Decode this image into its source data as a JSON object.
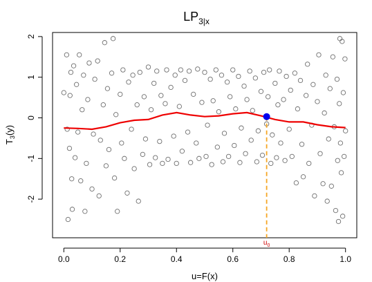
{
  "chart_data": {
    "type": "scatter",
    "title": {
      "base": "LP",
      "subscript": "3|x"
    },
    "xlabel": "u=F(x)",
    "ylabel": {
      "base": "T",
      "subscript": "3",
      "suffix": "(y)"
    },
    "xlim": [
      -0.04,
      1.04
    ],
    "ylim": [
      -2.95,
      2.1
    ],
    "x_ticks": [
      0.0,
      0.2,
      0.4,
      0.6,
      0.8,
      1.0
    ],
    "x_tick_labels": [
      "0.0",
      "0.2",
      "0.4",
      "0.6",
      "0.8",
      "1.0"
    ],
    "y_ticks": [
      -2,
      -1,
      0,
      1,
      2
    ],
    "y_tick_labels": [
      "-2",
      "-1",
      "0",
      "1",
      "2"
    ],
    "grid": false,
    "colors": {
      "points": "#6e6e6e",
      "curve": "#ee0000",
      "highlight": "#0000ee",
      "guide": "#f5a623",
      "marker_label": "#cc0000"
    },
    "series": [
      {
        "type": "scatter",
        "points": [
          [
            0.0,
            0.62
          ],
          [
            0.01,
            1.55
          ],
          [
            0.012,
            -0.28
          ],
          [
            0.015,
            -2.5
          ],
          [
            0.02,
            -0.75
          ],
          [
            0.022,
            0.55
          ],
          [
            0.025,
            1.12
          ],
          [
            0.028,
            -1.5
          ],
          [
            0.03,
            -2.25
          ],
          [
            0.035,
            1.28
          ],
          [
            0.04,
            -0.98
          ],
          [
            0.045,
            0.82
          ],
          [
            0.05,
            -0.35
          ],
          [
            0.055,
            1.55
          ],
          [
            0.06,
            -1.55
          ],
          [
            0.065,
            0.2
          ],
          [
            0.07,
            1.05
          ],
          [
            0.075,
            -2.3
          ],
          [
            0.08,
            -1.12
          ],
          [
            0.085,
            0.45
          ],
          [
            0.09,
            1.35
          ],
          [
            0.1,
            -1.75
          ],
          [
            0.105,
            -0.4
          ],
          [
            0.11,
            0.95
          ],
          [
            0.12,
            1.4
          ],
          [
            0.125,
            -1.92
          ],
          [
            0.13,
            -0.55
          ],
          [
            0.14,
            0.32
          ],
          [
            0.145,
            1.85
          ],
          [
            0.15,
            -1.18
          ],
          [
            0.155,
            0.72
          ],
          [
            0.16,
            -0.78
          ],
          [
            0.17,
            1.1
          ],
          [
            0.175,
            1.95
          ],
          [
            0.18,
            -1.48
          ],
          [
            0.185,
            0.08
          ],
          [
            0.19,
            -2.3
          ],
          [
            0.2,
            0.58
          ],
          [
            0.205,
            -0.62
          ],
          [
            0.21,
            1.18
          ],
          [
            0.215,
            -1.0
          ],
          [
            0.225,
            -1.85
          ],
          [
            0.23,
            0.88
          ],
          [
            0.24,
            -0.28
          ],
          [
            0.245,
            1.05
          ],
          [
            0.25,
            -1.25
          ],
          [
            0.26,
            0.32
          ],
          [
            0.265,
            -2.05
          ],
          [
            0.27,
            1.12
          ],
          [
            0.28,
            -0.9
          ],
          [
            0.285,
            0.52
          ],
          [
            0.29,
            -0.52
          ],
          [
            0.3,
            1.25
          ],
          [
            0.305,
            -1.15
          ],
          [
            0.31,
            0.2
          ],
          [
            0.32,
            0.85
          ],
          [
            0.325,
            -0.98
          ],
          [
            0.33,
            1.15
          ],
          [
            0.34,
            -0.58
          ],
          [
            0.345,
            0.55
          ],
          [
            0.35,
            -1.12
          ],
          [
            0.36,
            0.35
          ],
          [
            0.365,
            1.18
          ],
          [
            0.37,
            -1.02
          ],
          [
            0.38,
            0.75
          ],
          [
            0.39,
            -0.45
          ],
          [
            0.395,
            1.05
          ],
          [
            0.4,
            -1.12
          ],
          [
            0.41,
            0.28
          ],
          [
            0.415,
            1.18
          ],
          [
            0.42,
            -0.82
          ],
          [
            0.43,
            0.92
          ],
          [
            0.44,
            -0.35
          ],
          [
            0.445,
            1.15
          ],
          [
            0.45,
            -1.1
          ],
          [
            0.46,
            0.58
          ],
          [
            0.47,
            -0.62
          ],
          [
            0.475,
            1.2
          ],
          [
            0.48,
            -1.0
          ],
          [
            0.49,
            0.38
          ],
          [
            0.5,
            1.12
          ],
          [
            0.505,
            -0.95
          ],
          [
            0.51,
            -0.18
          ],
          [
            0.52,
            0.95
          ],
          [
            0.525,
            -1.15
          ],
          [
            0.53,
            0.42
          ],
          [
            0.54,
            1.18
          ],
          [
            0.545,
            -0.72
          ],
          [
            0.55,
            0.15
          ],
          [
            0.56,
            1.05
          ],
          [
            0.565,
            -1.08
          ],
          [
            0.57,
            -0.38
          ],
          [
            0.58,
            0.88
          ],
          [
            0.585,
            -0.95
          ],
          [
            0.59,
            0.52
          ],
          [
            0.6,
            1.18
          ],
          [
            0.605,
            -0.68
          ],
          [
            0.61,
            0.22
          ],
          [
            0.62,
            1.02
          ],
          [
            0.625,
            -1.1
          ],
          [
            0.63,
            -0.25
          ],
          [
            0.64,
            0.78
          ],
          [
            0.645,
            -0.88
          ],
          [
            0.65,
            0.45
          ],
          [
            0.66,
            1.15
          ],
          [
            0.665,
            -0.55
          ],
          [
            0.67,
            0.18
          ],
          [
            0.68,
            0.98
          ],
          [
            0.685,
            -1.08
          ],
          [
            0.69,
            -0.32
          ],
          [
            0.7,
            0.65
          ],
          [
            0.705,
            -0.92
          ],
          [
            0.71,
            1.12
          ],
          [
            0.72,
            -0.15
          ],
          [
            0.725,
            0.52
          ],
          [
            0.73,
            1.18
          ],
          [
            0.735,
            -1.12
          ],
          [
            0.74,
            -0.42
          ],
          [
            0.75,
            0.85
          ],
          [
            0.755,
            -0.98
          ],
          [
            0.76,
            0.32
          ],
          [
            0.765,
            1.15
          ],
          [
            0.77,
            -0.62
          ],
          [
            0.78,
            0.45
          ],
          [
            0.785,
            -1.05
          ],
          [
            0.79,
            1.02
          ],
          [
            0.8,
            -0.28
          ],
          [
            0.805,
            0.68
          ],
          [
            0.81,
            -0.95
          ],
          [
            0.82,
            1.1
          ],
          [
            0.825,
            -1.6
          ],
          [
            0.83,
            0.22
          ],
          [
            0.84,
            0.92
          ],
          [
            0.845,
            -0.65
          ],
          [
            0.85,
            -1.45
          ],
          [
            0.86,
            0.55
          ],
          [
            0.865,
            1.32
          ],
          [
            0.87,
            -1.12
          ],
          [
            0.88,
            -0.18
          ],
          [
            0.885,
            0.82
          ],
          [
            0.89,
            -1.92
          ],
          [
            0.9,
            0.4
          ],
          [
            0.905,
            1.55
          ],
          [
            0.91,
            -0.88
          ],
          [
            0.92,
            -1.62
          ],
          [
            0.925,
            0.12
          ],
          [
            0.93,
            1.05
          ],
          [
            0.935,
            -2.05
          ],
          [
            0.94,
            -0.52
          ],
          [
            0.945,
            0.72
          ],
          [
            0.95,
            -1.68
          ],
          [
            0.955,
            1.5
          ],
          [
            0.96,
            -0.22
          ],
          [
            0.965,
            -2.28
          ],
          [
            0.97,
            0.95
          ],
          [
            0.972,
            -1.05
          ],
          [
            0.975,
            -2.55
          ],
          [
            0.978,
            0.35
          ],
          [
            0.98,
            1.95
          ],
          [
            0.982,
            -0.62
          ],
          [
            0.985,
            -1.35
          ],
          [
            0.988,
            1.88
          ],
          [
            0.99,
            -2.42
          ],
          [
            0.992,
            0.62
          ],
          [
            0.995,
            -0.95
          ],
          [
            0.998,
            1.45
          ],
          [
            1.0,
            -0.32
          ]
        ]
      },
      {
        "type": "line",
        "x": [
          0.0,
          0.05,
          0.1,
          0.15,
          0.2,
          0.25,
          0.3,
          0.35,
          0.4,
          0.45,
          0.5,
          0.55,
          0.6,
          0.65,
          0.7,
          0.75,
          0.8,
          0.85,
          0.9,
          0.95,
          1.0
        ],
        "y": [
          -0.25,
          -0.26,
          -0.28,
          -0.22,
          -0.12,
          -0.06,
          -0.04,
          0.07,
          0.13,
          0.07,
          0.03,
          0.05,
          0.1,
          0.13,
          0.05,
          -0.04,
          -0.1,
          -0.1,
          -0.17,
          -0.22,
          -0.24
        ]
      }
    ],
    "highlight_point": {
      "x": 0.72,
      "y": 0.03
    },
    "marker": {
      "x": 0.72,
      "label_base": "u",
      "label_sub": "0"
    }
  }
}
